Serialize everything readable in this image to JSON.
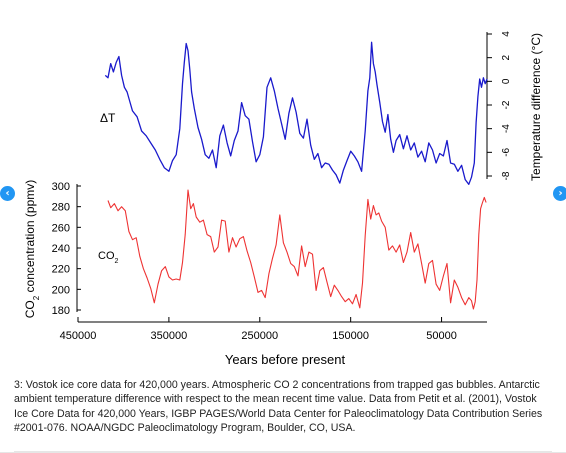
{
  "nav": {
    "prev_glyph": "‹",
    "next_glyph": "›",
    "prev_icon": "chevron-left-icon",
    "next_icon": "chevron-right-icon",
    "color": "#2196f3"
  },
  "caption": "3: Vostok ice core data for 420,000 years. Atmospheric CO 2 concentrations from trapped gas bubbles. Antarctic ambient temperature difference with respect to the mean recent time value. Data from Petit et al. (2001), Vostok Ice Core Data for 420,000 Years, IGBP PAGES/World Data Center for Paleoclimatology Data Contribution Series #2001-076. NOAA/NGDC Paleoclimatology Program, Boulder, CO, USA.",
  "chart_data": {
    "type": "line",
    "xlabel": "Years before present",
    "x_ticks": [
      "450000",
      "350000",
      "250000",
      "150000",
      "50000"
    ],
    "x_tick_values": [
      450000,
      350000,
      250000,
      150000,
      50000
    ],
    "xlim": [
      450000,
      0
    ],
    "co2_axis": {
      "label": "CO",
      "label_sub": "2",
      "label_suffix": " concentration (ppmv)",
      "ticks": [
        "180",
        "200",
        "220",
        "240",
        "260",
        "280",
        "300"
      ],
      "tick_values": [
        180,
        200,
        220,
        240,
        260,
        280,
        300
      ],
      "ylim": [
        180,
        300
      ]
    },
    "temp_axis": {
      "label": "Temperature difference (°C)",
      "ticks": [
        "4",
        "2",
        "0",
        "-2",
        "-4",
        "-6",
        "-8"
      ],
      "tick_values": [
        4,
        2,
        0,
        -2,
        -4,
        -6,
        -8
      ],
      "ylim": [
        -8,
        4
      ]
    },
    "series": [
      {
        "name": "ΔT",
        "color": "#1a1acc",
        "x": [
          420000,
          417000,
          414000,
          411000,
          408000,
          405000,
          402000,
          399000,
          396000,
          393000,
          390000,
          385000,
          380000,
          375000,
          370000,
          365000,
          360000,
          355000,
          350000,
          346000,
          342000,
          338000,
          335000,
          333000,
          331000,
          329000,
          327000,
          325000,
          322000,
          318000,
          314000,
          310000,
          306000,
          302000,
          298000,
          294000,
          290000,
          286000,
          282000,
          278000,
          274000,
          270000,
          266000,
          262000,
          258000,
          254000,
          250000,
          246000,
          242000,
          238000,
          234000,
          230000,
          226000,
          222000,
          218000,
          214000,
          210000,
          206000,
          202000,
          198000,
          194000,
          190000,
          186000,
          182000,
          178000,
          174000,
          170000,
          166000,
          162000,
          158000,
          154000,
          150000,
          146000,
          142000,
          138000,
          134000,
          131000,
          129000,
          127000,
          125000,
          123000,
          121000,
          118000,
          115000,
          112000,
          109000,
          106000,
          103000,
          100000,
          96000,
          92000,
          88000,
          84000,
          80000,
          76000,
          72000,
          68000,
          64000,
          60000,
          56000,
          52000,
          48000,
          44000,
          40000,
          36000,
          32000,
          28000,
          24000,
          20000,
          17000,
          14000,
          12000,
          10000,
          8000,
          6000,
          4000,
          2000,
          0
        ],
        "values": [
          0.5,
          0.3,
          1.5,
          0.8,
          1.6,
          2.1,
          0.5,
          -0.5,
          -0.9,
          -1.7,
          -2.5,
          -3.0,
          -4.2,
          -4.6,
          -5.2,
          -5.8,
          -6.6,
          -7.3,
          -7.6,
          -6.7,
          -6.2,
          -4.0,
          -0.2,
          1.6,
          3.2,
          2.6,
          1.0,
          -0.9,
          -2.3,
          -3.9,
          -4.9,
          -6.2,
          -6.5,
          -5.8,
          -7.3,
          -4.6,
          -3.7,
          -5.2,
          -6.3,
          -5.0,
          -4.2,
          -1.8,
          -2.9,
          -3.2,
          -5.1,
          -6.8,
          -6.2,
          -4.7,
          -0.5,
          0.3,
          -0.8,
          -2.3,
          -3.6,
          -4.9,
          -2.7,
          -1.4,
          -2.6,
          -4.4,
          -4.8,
          -3.2,
          -5.4,
          -6.6,
          -6.1,
          -7.3,
          -6.9,
          -7.0,
          -7.5,
          -7.9,
          -8.6,
          -7.5,
          -6.7,
          -5.9,
          -6.3,
          -6.8,
          -7.6,
          -4.2,
          -0.8,
          0.3,
          3.3,
          1.5,
          0.8,
          -0.3,
          -1.8,
          -3.4,
          -4.3,
          -2.8,
          -4.9,
          -6.0,
          -5.0,
          -4.5,
          -5.7,
          -4.6,
          -5.8,
          -5.2,
          -6.4,
          -5.9,
          -6.8,
          -5.2,
          -5.8,
          -6.9,
          -6.1,
          -6.3,
          -5.0,
          -6.9,
          -7.0,
          -7.6,
          -7.1,
          -8.3,
          -8.7,
          -8.1,
          -6.9,
          -3.5,
          -1.3,
          0.2,
          -0.5,
          0.3,
          -0.2,
          0.2
        ]
      },
      {
        "name": "CO",
        "name_sub": "2",
        "color": "#ee3333",
        "x": [
          417000,
          414000,
          410000,
          406000,
          402000,
          398000,
          394000,
          390000,
          386000,
          382000,
          378000,
          374000,
          370000,
          366000,
          362000,
          358000,
          354000,
          350000,
          346000,
          342000,
          338000,
          335000,
          332000,
          329000,
          326000,
          323000,
          320000,
          316000,
          312000,
          308000,
          304000,
          300000,
          296000,
          292000,
          288000,
          284000,
          280000,
          276000,
          272000,
          268000,
          264000,
          260000,
          256000,
          252000,
          248000,
          244000,
          240000,
          236000,
          232000,
          228000,
          224000,
          220000,
          216000,
          212000,
          208000,
          204000,
          200000,
          196000,
          192000,
          188000,
          184000,
          180000,
          176000,
          172000,
          168000,
          164000,
          160000,
          156000,
          152000,
          148000,
          144000,
          140000,
          137000,
          134000,
          131000,
          128000,
          125000,
          122000,
          119000,
          116000,
          112000,
          108000,
          104000,
          100000,
          96000,
          92000,
          88000,
          84000,
          80000,
          76000,
          72000,
          68000,
          64000,
          60000,
          56000,
          52000,
          48000,
          44000,
          40000,
          36000,
          32000,
          28000,
          24000,
          20000,
          17000,
          15000,
          13000,
          11000,
          9000,
          7000,
          5000,
          3000,
          1000
        ],
        "values": [
          286,
          279,
          283,
          276,
          280,
          276,
          256,
          248,
          250,
          232,
          220,
          211,
          201,
          187,
          205,
          218,
          222,
          212,
          209,
          210,
          209,
          226,
          253,
          296,
          278,
          283,
          270,
          265,
          267,
          253,
          251,
          236,
          241,
          267,
          266,
          236,
          250,
          241,
          249,
          251,
          237,
          226,
          212,
          197,
          199,
          192,
          215,
          230,
          243,
          272,
          245,
          236,
          225,
          222,
          213,
          242,
          222,
          236,
          234,
          199,
          218,
          221,
          207,
          193,
          204,
          199,
          193,
          188,
          191,
          186,
          195,
          182,
          206,
          252,
          287,
          268,
          281,
          272,
          274,
          266,
          260,
          238,
          242,
          236,
          243,
          226,
          236,
          255,
          236,
          244,
          225,
          206,
          225,
          228,
          205,
          199,
          213,
          225,
          187,
          209,
          202,
          192,
          185,
          192,
          189,
          181,
          188,
          209,
          253,
          278,
          284,
          289,
          284
        ]
      }
    ],
    "annotations": [
      {
        "text": "ΔT",
        "series": "ΔT"
      },
      {
        "text": "CO",
        "sub": "2",
        "series": "CO"
      }
    ]
  }
}
